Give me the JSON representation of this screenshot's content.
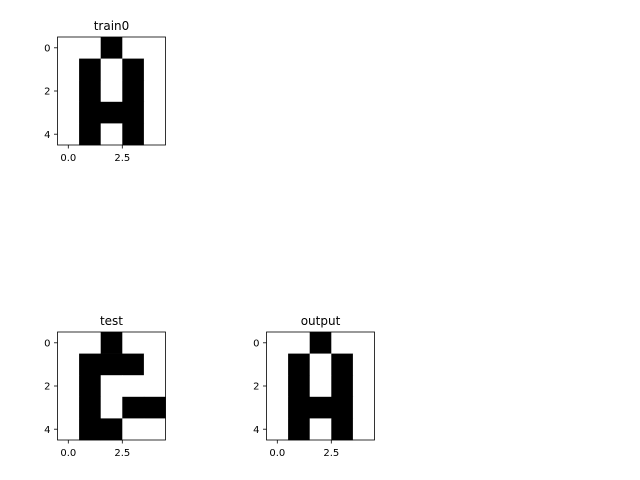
{
  "chart_data": [
    {
      "type": "heatmap",
      "title": "train0",
      "grid": [
        [
          0,
          0,
          1,
          0,
          0
        ],
        [
          0,
          1,
          0,
          1,
          0
        ],
        [
          0,
          1,
          0,
          1,
          0
        ],
        [
          0,
          1,
          1,
          1,
          0
        ],
        [
          0,
          1,
          0,
          1,
          0
        ]
      ],
      "xticks": [
        "0.0",
        "2.5"
      ],
      "yticks": [
        "0",
        "2",
        "4"
      ],
      "xlim": [
        -0.5,
        4.5
      ],
      "ylim": [
        4.5,
        -0.5
      ]
    },
    {
      "type": "heatmap",
      "title": "test",
      "grid": [
        [
          0,
          0,
          1,
          0,
          0
        ],
        [
          0,
          1,
          1,
          1,
          0
        ],
        [
          0,
          1,
          0,
          0,
          0
        ],
        [
          0,
          1,
          0,
          1,
          1
        ],
        [
          0,
          1,
          1,
          0,
          0
        ]
      ],
      "xticks": [
        "0.0",
        "2.5"
      ],
      "yticks": [
        "0",
        "2",
        "4"
      ],
      "xlim": [
        -0.5,
        4.5
      ],
      "ylim": [
        4.5,
        -0.5
      ]
    },
    {
      "type": "heatmap",
      "title": "output",
      "grid": [
        [
          0,
          0,
          1,
          0,
          0
        ],
        [
          0,
          1,
          0,
          1,
          0
        ],
        [
          0,
          1,
          0,
          1,
          0
        ],
        [
          0,
          1,
          1,
          1,
          0
        ],
        [
          0,
          1,
          0,
          1,
          0
        ]
      ],
      "xticks": [
        "0.0",
        "2.5"
      ],
      "yticks": [
        "0",
        "2",
        "4"
      ],
      "xlim": [
        -0.5,
        4.5
      ],
      "ylim": [
        4.5,
        -0.5
      ]
    }
  ],
  "colors": {
    "on": "#000000",
    "off": "#ffffff",
    "frame": "#000000"
  }
}
